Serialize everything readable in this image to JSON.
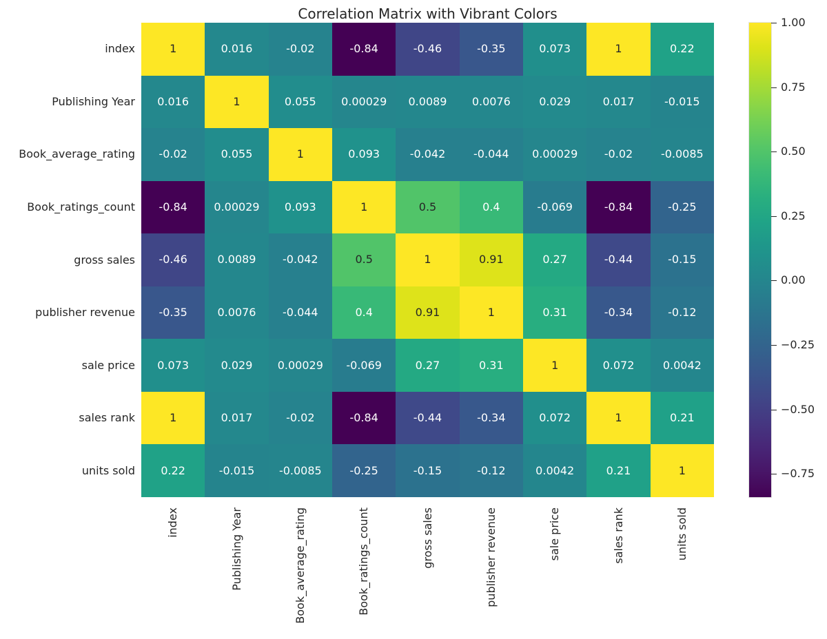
{
  "title": "Correlation Matrix with Vibrant Colors",
  "chart_data": {
    "type": "heatmap",
    "colormap": "viridis",
    "vmin": -0.84,
    "vmax": 1.0,
    "annotated": true,
    "legend_position": "right-colorbar",
    "grid": false,
    "labels": [
      "index",
      "Publishing Year",
      "Book_average_rating",
      "Book_ratings_count",
      "gross sales",
      "publisher revenue",
      "sale price",
      "sales rank",
      "units sold"
    ],
    "matrix": [
      [
        1,
        0.016,
        -0.02,
        -0.84,
        -0.46,
        -0.35,
        0.073,
        1,
        0.22
      ],
      [
        0.016,
        1,
        0.055,
        0.00029,
        0.0089,
        0.0076,
        0.029,
        0.017,
        -0.015
      ],
      [
        -0.02,
        0.055,
        1,
        0.093,
        -0.042,
        -0.044,
        0.00029,
        -0.02,
        -0.0085
      ],
      [
        -0.84,
        0.00029,
        0.093,
        1,
        0.5,
        0.4,
        -0.069,
        -0.84,
        -0.25
      ],
      [
        -0.46,
        0.0089,
        -0.042,
        0.5,
        1,
        0.91,
        0.27,
        -0.44,
        -0.15
      ],
      [
        -0.35,
        0.0076,
        -0.044,
        0.4,
        0.91,
        1,
        0.31,
        -0.34,
        -0.12
      ],
      [
        0.073,
        0.029,
        0.00029,
        -0.069,
        0.27,
        0.31,
        1,
        0.072,
        0.0042
      ],
      [
        1,
        0.017,
        -0.02,
        -0.84,
        -0.44,
        -0.34,
        0.072,
        1,
        0.21
      ],
      [
        0.22,
        -0.015,
        -0.0085,
        -0.25,
        -0.15,
        -0.12,
        0.0042,
        0.21,
        1
      ]
    ],
    "cell_labels": [
      [
        "1",
        "0.016",
        "-0.02",
        "-0.84",
        "-0.46",
        "-0.35",
        "0.073",
        "1",
        "0.22"
      ],
      [
        "0.016",
        "1",
        "0.055",
        "0.00029",
        "0.0089",
        "0.0076",
        "0.029",
        "0.017",
        "-0.015"
      ],
      [
        "-0.02",
        "0.055",
        "1",
        "0.093",
        "-0.042",
        "-0.044",
        "0.00029",
        "-0.02",
        "-0.0085"
      ],
      [
        "-0.84",
        "0.00029",
        "0.093",
        "1",
        "0.5",
        "0.4",
        "-0.069",
        "-0.84",
        "-0.25"
      ],
      [
        "-0.46",
        "0.0089",
        "-0.042",
        "0.5",
        "1",
        "0.91",
        "0.27",
        "-0.44",
        "-0.15"
      ],
      [
        "-0.35",
        "0.0076",
        "-0.044",
        "0.4",
        "0.91",
        "1",
        "0.31",
        "-0.34",
        "-0.12"
      ],
      [
        "0.073",
        "0.029",
        "0.00029",
        "-0.069",
        "0.27",
        "0.31",
        "1",
        "0.072",
        "0.0042"
      ],
      [
        "1",
        "0.017",
        "-0.02",
        "-0.84",
        "-0.44",
        "-0.34",
        "0.072",
        "1",
        "0.21"
      ],
      [
        "0.22",
        "-0.015",
        "-0.0085",
        "-0.25",
        "-0.15",
        "-0.12",
        "0.0042",
        "0.21",
        "1"
      ]
    ],
    "colorbar_ticks": [
      {
        "value": 1.0,
        "label": "1.00"
      },
      {
        "value": 0.75,
        "label": "0.75"
      },
      {
        "value": 0.5,
        "label": "0.50"
      },
      {
        "value": 0.25,
        "label": "0.25"
      },
      {
        "value": 0.0,
        "label": "0.00"
      },
      {
        "value": -0.25,
        "label": "−0.25"
      },
      {
        "value": -0.5,
        "label": "−0.50"
      },
      {
        "value": -0.75,
        "label": "−0.75"
      }
    ]
  },
  "colors": {
    "annotation_light": "#ffffff",
    "annotation_dark": "#262626",
    "axis_text": "#262626",
    "background": "#ffffff"
  }
}
